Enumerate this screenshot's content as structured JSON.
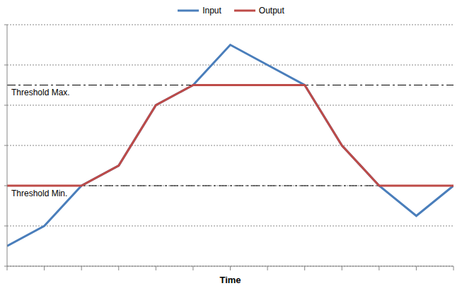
{
  "chart_data": {
    "type": "line",
    "x_label": "Time",
    "x": [
      0,
      1,
      2,
      3,
      4,
      5,
      6,
      7,
      8,
      9,
      10,
      11,
      12
    ],
    "xlim": [
      0,
      12
    ],
    "xticks": [
      0,
      1,
      2,
      3,
      4,
      5,
      6,
      7,
      8,
      9,
      10,
      11,
      12
    ],
    "ylim": [
      0,
      6
    ],
    "yticks": [
      0,
      1,
      2,
      3,
      4,
      5,
      6
    ],
    "grid": true,
    "legend": "top",
    "tick_labels": false,
    "series": [
      {
        "name": "Input",
        "color": "#4a7ebb",
        "line_style": "solid",
        "values": [
          0.5,
          1,
          2,
          2.5,
          4,
          4.5,
          5.5,
          5,
          4.5,
          3,
          2,
          1.25,
          2
        ]
      },
      {
        "name": "Output",
        "color": "#be4b48",
        "line_style": "solid",
        "values": [
          2,
          2,
          2,
          2.5,
          4,
          4.5,
          4.5,
          4.5,
          4.5,
          3,
          2,
          2,
          2
        ]
      }
    ],
    "annotations": [
      {
        "text": "Threshold Max.",
        "y": 4.5,
        "color": "#000000",
        "line_style": "dashdot"
      },
      {
        "text": "Threshold Min.",
        "y": 2,
        "color": "#000000",
        "line_style": "dashdot"
      }
    ]
  }
}
